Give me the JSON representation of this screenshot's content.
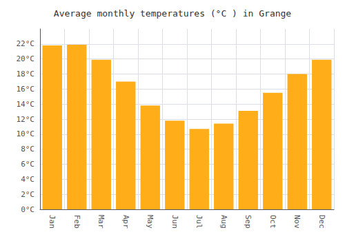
{
  "chart_data": {
    "type": "bar",
    "title": "Average monthly temperatures (°C ) in Grange",
    "categories": [
      "Jan",
      "Feb",
      "Mar",
      "Apr",
      "May",
      "Jun",
      "Jul",
      "Aug",
      "Sep",
      "Oct",
      "Nov",
      "Dec"
    ],
    "values": [
      21.8,
      21.9,
      19.9,
      17.0,
      13.8,
      11.8,
      10.7,
      11.4,
      13.1,
      15.5,
      18.0,
      19.9
    ],
    "color": "#FFAE1A",
    "ylim": [
      0,
      24
    ],
    "yticks": [
      {
        "value": 0,
        "label": "0°C"
      },
      {
        "value": 2,
        "label": "2°C"
      },
      {
        "value": 4,
        "label": "4°C"
      },
      {
        "value": 6,
        "label": "6°C"
      },
      {
        "value": 8,
        "label": "8°C"
      },
      {
        "value": 10,
        "label": "10°C"
      },
      {
        "value": 12,
        "label": "12°C"
      },
      {
        "value": 14,
        "label": "14°C"
      },
      {
        "value": 16,
        "label": "16°C"
      },
      {
        "value": 18,
        "label": "18°C"
      },
      {
        "value": 20,
        "label": "20°C"
      },
      {
        "value": 22,
        "label": "22°C"
      }
    ],
    "grid": true
  }
}
